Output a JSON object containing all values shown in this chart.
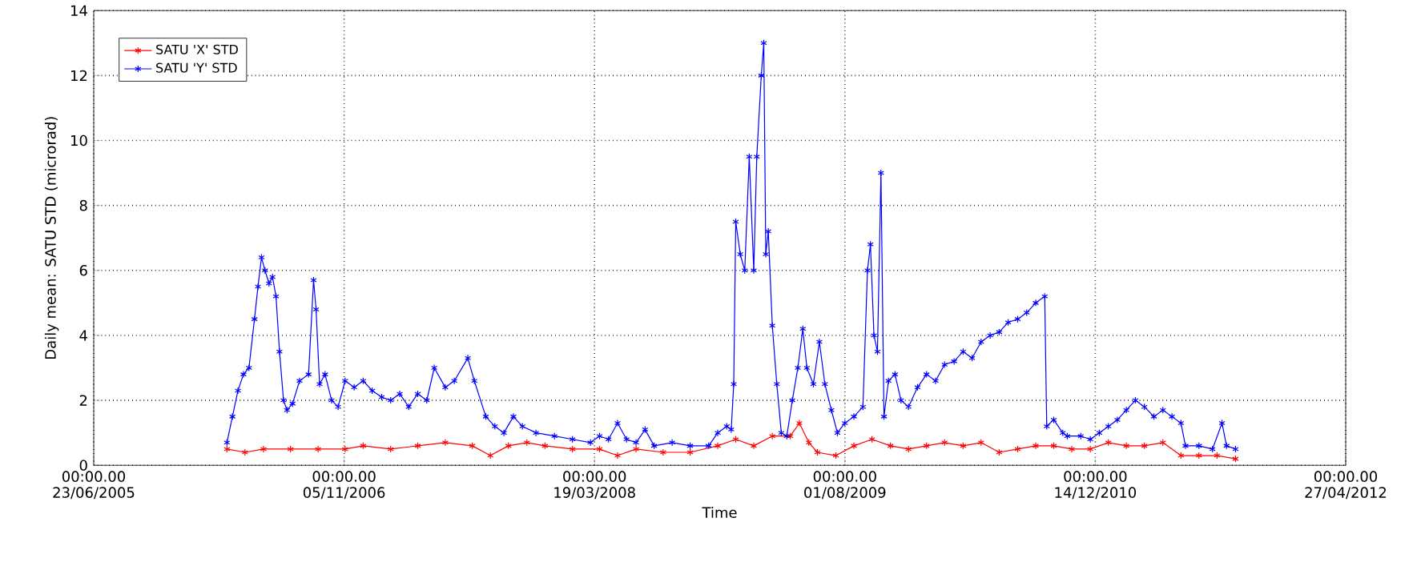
{
  "chart_data": {
    "type": "line",
    "xlabel": "Time",
    "ylabel": "Daily mean: SATU STD (microrad)",
    "xlim": [
      "2005-06-23",
      "2012-04-27"
    ],
    "xticks": [
      {
        "value": "2005-06-23",
        "label": "00:00.00 23/06/2005"
      },
      {
        "value": "2006-11-05",
        "label": "00:00.00 05/11/2006"
      },
      {
        "value": "2008-03-19",
        "label": "00:00.00 19/03/2008"
      },
      {
        "value": "2009-08-01",
        "label": "00:00.00 01/08/2009"
      },
      {
        "value": "2010-12-14",
        "label": "00:00.00 14/12/2010"
      },
      {
        "value": "2012-04-27",
        "label": "00:00.00 27/04/2012"
      }
    ],
    "ylim": [
      0,
      14
    ],
    "yticks": [
      0,
      2,
      4,
      6,
      8,
      10,
      12,
      14
    ],
    "grid": true,
    "legend": "top left",
    "marker": "cross",
    "line_style": "solid",
    "series": [
      {
        "name": "SATU 'X' STD",
        "color": "#ff0000",
        "x": [
          "2006-03-16",
          "2006-04-21",
          "2006-05-28",
          "2006-07-21",
          "2006-09-14",
          "2006-11-07",
          "2006-12-13",
          "2007-02-06",
          "2007-04-01",
          "2007-05-26",
          "2007-07-19",
          "2007-08-24",
          "2007-09-29",
          "2007-11-05",
          "2007-12-11",
          "2008-02-04",
          "2008-03-29",
          "2008-05-04",
          "2008-06-10",
          "2008-08-03",
          "2008-09-26",
          "2008-11-20",
          "2008-12-26",
          "2009-01-31",
          "2009-03-09",
          "2009-04-14",
          "2009-05-02",
          "2009-05-21",
          "2009-06-07",
          "2009-07-14",
          "2009-08-19",
          "2009-09-24",
          "2009-10-31",
          "2009-12-06",
          "2010-01-11",
          "2010-02-16",
          "2010-03-25",
          "2010-04-30",
          "2010-06-05",
          "2010-07-12",
          "2010-08-17",
          "2010-09-22",
          "2010-10-28",
          "2010-12-04",
          "2011-01-09",
          "2011-02-14",
          "2011-03-22",
          "2011-04-28",
          "2011-06-03",
          "2011-07-09",
          "2011-08-14",
          "2011-09-20"
        ],
        "values": [
          0.5,
          0.4,
          0.5,
          0.5,
          0.5,
          0.5,
          0.6,
          0.5,
          0.6,
          0.7,
          0.6,
          0.3,
          0.6,
          0.7,
          0.6,
          0.5,
          0.5,
          0.3,
          0.5,
          0.4,
          0.4,
          0.6,
          0.8,
          0.6,
          0.9,
          0.9,
          1.3,
          0.7,
          0.4,
          0.3,
          0.6,
          0.8,
          0.6,
          0.5,
          0.6,
          0.7,
          0.6,
          0.7,
          0.4,
          0.5,
          0.6,
          0.6,
          0.5,
          0.5,
          0.7,
          0.6,
          0.6,
          0.7,
          0.3,
          0.3,
          0.3,
          0.2
        ]
      },
      {
        "name": "SATU 'Y' STD",
        "color": "#0000ff",
        "x": [
          "2006-03-16",
          "2006-03-27",
          "2006-04-07",
          "2006-04-18",
          "2006-04-29",
          "2006-05-10",
          "2006-05-17",
          "2006-05-24",
          "2006-05-31",
          "2006-06-08",
          "2006-06-15",
          "2006-06-22",
          "2006-06-29",
          "2006-07-07",
          "2006-07-14",
          "2006-07-25",
          "2006-08-08",
          "2006-08-26",
          "2006-09-05",
          "2006-09-10",
          "2006-09-17",
          "2006-09-28",
          "2006-10-11",
          "2006-10-24",
          "2006-11-07",
          "2006-11-25",
          "2006-12-13",
          "2006-12-31",
          "2007-01-19",
          "2007-02-06",
          "2007-02-24",
          "2007-03-14",
          "2007-04-01",
          "2007-04-19",
          "2007-05-04",
          "2007-05-26",
          "2007-06-13",
          "2007-07-10",
          "2007-07-23",
          "2007-08-15",
          "2007-09-02",
          "2007-09-20",
          "2007-10-09",
          "2007-10-27",
          "2007-11-23",
          "2007-12-30",
          "2008-02-04",
          "2008-03-11",
          "2008-03-29",
          "2008-04-16",
          "2008-05-04",
          "2008-05-22",
          "2008-06-10",
          "2008-06-28",
          "2008-07-16",
          "2008-08-21",
          "2008-09-26",
          "2008-11-02",
          "2008-11-20",
          "2008-12-08",
          "2008-12-17",
          "2008-12-22",
          "2008-12-26",
          "2009-01-04",
          "2009-01-13",
          "2009-01-22",
          "2009-01-31",
          "2009-02-06",
          "2009-02-15",
          "2009-02-20",
          "2009-02-24",
          "2009-03-01",
          "2009-03-09",
          "2009-03-18",
          "2009-03-27",
          "2009-04-07",
          "2009-04-18",
          "2009-04-29",
          "2009-05-09",
          "2009-05-17",
          "2009-05-30",
          "2009-06-11",
          "2009-06-22",
          "2009-07-05",
          "2009-07-17",
          "2009-08-01",
          "2009-08-19",
          "2009-09-06",
          "2009-09-15",
          "2009-09-21",
          "2009-09-28",
          "2009-10-05",
          "2009-10-12",
          "2009-10-18",
          "2009-10-27",
          "2009-11-09",
          "2009-11-21",
          "2009-12-06",
          "2009-12-24",
          "2010-01-11",
          "2010-01-29",
          "2010-02-16",
          "2010-03-07",
          "2010-03-25",
          "2010-04-12",
          "2010-04-30",
          "2010-05-18",
          "2010-06-05",
          "2010-06-23",
          "2010-07-12",
          "2010-07-30",
          "2010-08-17",
          "2010-09-04",
          "2010-09-08",
          "2010-09-22",
          "2010-10-10",
          "2010-10-19",
          "2010-11-15",
          "2010-12-04",
          "2010-12-22",
          "2011-01-09",
          "2011-01-27",
          "2011-02-14",
          "2011-03-04",
          "2011-03-22",
          "2011-04-10",
          "2011-04-28",
          "2011-05-16",
          "2011-06-03",
          "2011-06-12",
          "2011-07-09",
          "2011-08-05",
          "2011-08-24",
          "2011-09-02",
          "2011-09-20"
        ],
        "values": [
          0.7,
          1.5,
          2.3,
          2.8,
          3.0,
          4.5,
          5.5,
          6.4,
          6.0,
          5.6,
          5.8,
          5.2,
          3.5,
          2.0,
          1.7,
          1.9,
          2.6,
          2.8,
          5.7,
          4.8,
          2.5,
          2.8,
          2.0,
          1.8,
          2.6,
          2.4,
          2.6,
          2.3,
          2.1,
          2.0,
          2.2,
          1.8,
          2.2,
          2.0,
          3.0,
          2.4,
          2.6,
          3.3,
          2.6,
          1.5,
          1.2,
          1.0,
          1.5,
          1.2,
          1.0,
          0.9,
          0.8,
          0.7,
          0.9,
          0.8,
          1.3,
          0.8,
          0.7,
          1.1,
          0.6,
          0.7,
          0.6,
          0.6,
          1.0,
          1.2,
          1.1,
          2.5,
          7.5,
          6.5,
          6.0,
          9.5,
          6.0,
          9.5,
          12.0,
          13.0,
          6.5,
          7.2,
          4.3,
          2.5,
          1.0,
          0.9,
          2.0,
          3.0,
          4.2,
          3.0,
          2.5,
          3.8,
          2.5,
          1.7,
          1.0,
          1.3,
          1.5,
          1.8,
          6.0,
          6.8,
          4.0,
          3.5,
          9.0,
          1.5,
          2.6,
          2.8,
          2.0,
          1.8,
          2.4,
          2.8,
          2.6,
          3.1,
          3.2,
          3.5,
          3.3,
          3.8,
          4.0,
          4.1,
          4.4,
          4.5,
          4.7,
          5.0,
          5.2,
          1.2,
          1.4,
          1.0,
          0.9,
          0.9,
          0.8,
          1.0,
          1.2,
          1.4,
          1.7,
          2.0,
          1.8,
          1.5,
          1.7,
          1.5,
          1.3,
          0.6,
          0.6,
          0.5,
          1.3,
          0.6,
          0.5
        ]
      }
    ]
  }
}
